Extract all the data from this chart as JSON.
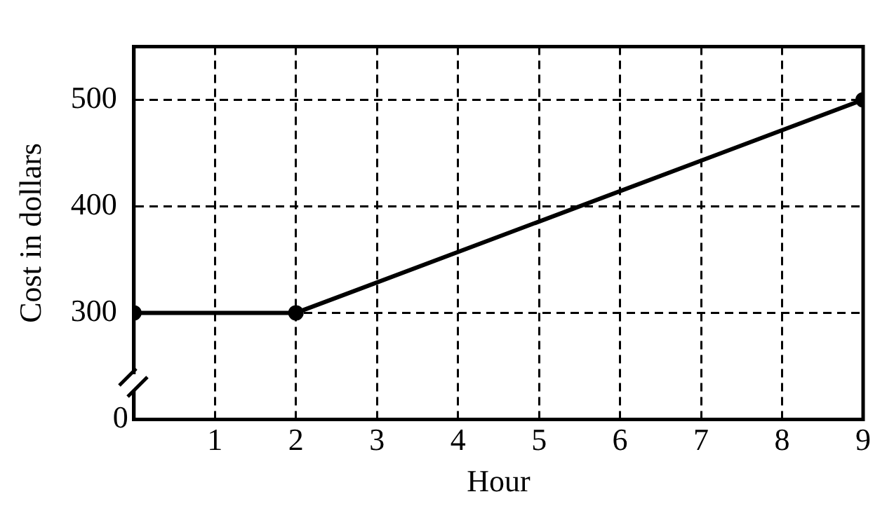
{
  "chart_data": {
    "type": "line",
    "xlabel": "Hour",
    "ylabel": "Cost in dollars",
    "x": [
      0,
      2,
      9
    ],
    "series": [
      {
        "color": "#000000",
        "values": [
          300,
          300,
          500
        ]
      }
    ],
    "xlim": [
      0,
      9
    ],
    "xticks": [
      1,
      2,
      3,
      4,
      5,
      6,
      7,
      8,
      9
    ],
    "ylim": [
      200,
      550
    ],
    "yticks": [
      300,
      400,
      500
    ],
    "annotations": [
      "0"
    ],
    "grid": true,
    "marker": "circle",
    "line_style": "solid",
    "legend": false
  }
}
